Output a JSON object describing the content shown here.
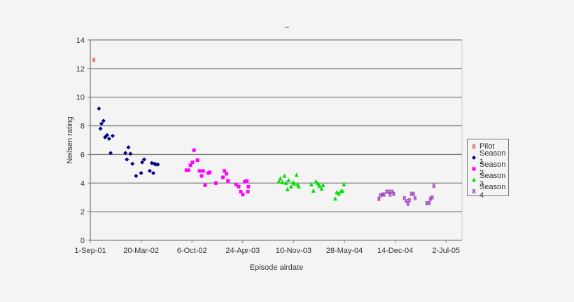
{
  "chart_data": {
    "type": "scatter",
    "title": "–",
    "xlabel": "Episode airdate",
    "ylabel": "Neilsen rating",
    "ylim": [
      0,
      14
    ],
    "yticks": [
      0,
      2,
      4,
      6,
      8,
      10,
      12,
      14
    ],
    "xticks": [
      "1-Sep-01",
      "20-Mar-02",
      "6-Oct-02",
      "24-Apr-03",
      "10-Nov-03",
      "28-May-04",
      "14-Dec-04",
      "2-Jul-05"
    ],
    "grid": "horizontal",
    "legend_position": "right",
    "series": [
      {
        "name": "Pilot",
        "color": "#e06060",
        "marker": "x",
        "points": [
          {
            "x": 0.07,
            "y": 12.6
          }
        ]
      },
      {
        "name": "Season 1",
        "color": "#000080",
        "marker": "diamond",
        "points": [
          {
            "x": 0.17,
            "y": 9.2
          },
          {
            "x": 0.2,
            "y": 7.8
          },
          {
            "x": 0.22,
            "y": 8.15
          },
          {
            "x": 0.26,
            "y": 8.35
          },
          {
            "x": 0.29,
            "y": 7.2
          },
          {
            "x": 0.33,
            "y": 7.35
          },
          {
            "x": 0.37,
            "y": 7.1
          },
          {
            "x": 0.44,
            "y": 7.3
          },
          {
            "x": 0.4,
            "y": 6.1
          },
          {
            "x": 0.69,
            "y": 6.1
          },
          {
            "x": 0.75,
            "y": 6.5
          },
          {
            "x": 0.79,
            "y": 6.05
          },
          {
            "x": 0.72,
            "y": 5.65
          },
          {
            "x": 0.83,
            "y": 5.35
          },
          {
            "x": 0.9,
            "y": 4.5
          },
          {
            "x": 1.0,
            "y": 4.7
          },
          {
            "x": 1.02,
            "y": 5.45
          },
          {
            "x": 1.06,
            "y": 5.65
          },
          {
            "x": 1.17,
            "y": 4.85
          },
          {
            "x": 1.24,
            "y": 4.7
          },
          {
            "x": 1.21,
            "y": 5.4
          },
          {
            "x": 1.26,
            "y": 5.35
          },
          {
            "x": 1.29,
            "y": 5.3
          },
          {
            "x": 1.33,
            "y": 5.3
          }
        ]
      },
      {
        "name": "Season 2",
        "color": "#ff00ff",
        "marker": "square",
        "points": [
          {
            "x": 1.89,
            "y": 4.9
          },
          {
            "x": 1.93,
            "y": 4.9
          },
          {
            "x": 1.97,
            "y": 5.25
          },
          {
            "x": 2.01,
            "y": 5.45
          },
          {
            "x": 2.04,
            "y": 6.3
          },
          {
            "x": 2.11,
            "y": 5.6
          },
          {
            "x": 2.15,
            "y": 4.85
          },
          {
            "x": 2.19,
            "y": 4.5
          },
          {
            "x": 2.22,
            "y": 4.85
          },
          {
            "x": 2.26,
            "y": 3.85
          },
          {
            "x": 2.32,
            "y": 4.7
          },
          {
            "x": 2.35,
            "y": 4.75
          },
          {
            "x": 2.47,
            "y": 4.0
          },
          {
            "x": 2.61,
            "y": 4.4
          },
          {
            "x": 2.64,
            "y": 4.85
          },
          {
            "x": 2.68,
            "y": 4.65
          },
          {
            "x": 2.71,
            "y": 4.15
          },
          {
            "x": 2.87,
            "y": 3.9
          },
          {
            "x": 2.92,
            "y": 3.75
          },
          {
            "x": 2.96,
            "y": 3.4
          },
          {
            "x": 3.0,
            "y": 3.2
          },
          {
            "x": 3.04,
            "y": 4.1
          },
          {
            "x": 3.08,
            "y": 4.15
          },
          {
            "x": 3.11,
            "y": 3.75
          },
          {
            "x": 3.1,
            "y": 3.4
          }
        ]
      },
      {
        "name": "Season 3",
        "color": "#00e000",
        "marker": "triangle",
        "points": [
          {
            "x": 3.71,
            "y": 4.1
          },
          {
            "x": 3.74,
            "y": 4.3
          },
          {
            "x": 3.78,
            "y": 4.05
          },
          {
            "x": 3.82,
            "y": 4.5
          },
          {
            "x": 3.85,
            "y": 4.0
          },
          {
            "x": 3.88,
            "y": 3.55
          },
          {
            "x": 3.9,
            "y": 4.2
          },
          {
            "x": 3.95,
            "y": 3.75
          },
          {
            "x": 3.99,
            "y": 4.05
          },
          {
            "x": 4.01,
            "y": 3.95
          },
          {
            "x": 4.06,
            "y": 4.55
          },
          {
            "x": 4.08,
            "y": 3.9
          },
          {
            "x": 4.1,
            "y": 3.75
          },
          {
            "x": 4.35,
            "y": 3.9
          },
          {
            "x": 4.39,
            "y": 3.45
          },
          {
            "x": 4.44,
            "y": 4.1
          },
          {
            "x": 4.48,
            "y": 3.95
          },
          {
            "x": 4.51,
            "y": 3.8
          },
          {
            "x": 4.55,
            "y": 3.6
          },
          {
            "x": 4.58,
            "y": 3.85
          },
          {
            "x": 4.82,
            "y": 2.9
          },
          {
            "x": 4.85,
            "y": 3.35
          },
          {
            "x": 4.89,
            "y": 3.25
          },
          {
            "x": 4.93,
            "y": 3.4
          },
          {
            "x": 4.96,
            "y": 3.45
          },
          {
            "x": 4.99,
            "y": 3.9
          }
        ]
      },
      {
        "name": "Season 4",
        "color": "#a040c0",
        "marker": "x",
        "points": [
          {
            "x": 5.68,
            "y": 2.9
          },
          {
            "x": 5.71,
            "y": 3.15
          },
          {
            "x": 5.75,
            "y": 3.2
          },
          {
            "x": 5.78,
            "y": 3.2
          },
          {
            "x": 5.83,
            "y": 3.4
          },
          {
            "x": 5.88,
            "y": 3.4
          },
          {
            "x": 5.9,
            "y": 3.2
          },
          {
            "x": 5.94,
            "y": 3.4
          },
          {
            "x": 5.97,
            "y": 3.25
          },
          {
            "x": 6.18,
            "y": 2.95
          },
          {
            "x": 6.22,
            "y": 2.75
          },
          {
            "x": 6.25,
            "y": 2.55
          },
          {
            "x": 6.28,
            "y": 2.8
          },
          {
            "x": 6.32,
            "y": 3.25
          },
          {
            "x": 6.36,
            "y": 3.25
          },
          {
            "x": 6.39,
            "y": 2.95
          },
          {
            "x": 6.62,
            "y": 2.6
          },
          {
            "x": 6.67,
            "y": 2.6
          },
          {
            "x": 6.69,
            "y": 2.9
          },
          {
            "x": 6.73,
            "y": 3.0
          },
          {
            "x": 6.76,
            "y": 3.8
          }
        ]
      }
    ]
  },
  "legend": {
    "items": [
      {
        "label": "Pilot",
        "color": "#e06060",
        "marker": "x"
      },
      {
        "label": "Season 1",
        "color": "#000080",
        "marker": "diamond"
      },
      {
        "label": "Season 2",
        "color": "#ff00ff",
        "marker": "square"
      },
      {
        "label": "Season 3",
        "color": "#00e000",
        "marker": "triangle"
      },
      {
        "label": "Season 4",
        "color": "#a040c0",
        "marker": "x"
      }
    ]
  }
}
